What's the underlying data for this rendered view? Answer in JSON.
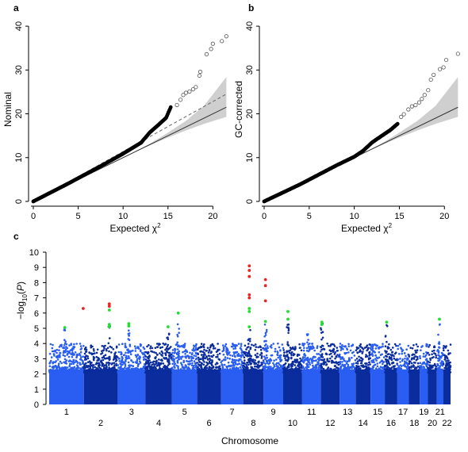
{
  "panels": {
    "a": {
      "letter": "a"
    },
    "b": {
      "letter": "b"
    },
    "c": {
      "letter": "c"
    }
  },
  "chart_data": [
    {
      "panel": "a",
      "type": "scatter",
      "xlabel": "Expected χ",
      "xlabel_sup": "2",
      "ylabel": "Nominal",
      "xlim": [
        0,
        22
      ],
      "ylim": [
        0,
        42
      ],
      "xticks": [
        0,
        5,
        10,
        15,
        20
      ],
      "yticks": [
        0,
        10,
        20,
        30,
        40
      ],
      "reference_line": {
        "from": [
          0,
          0
        ],
        "to": [
          21.5,
          21.5
        ]
      },
      "fitted_line_dashed": {
        "from": [
          0,
          0
        ],
        "to": [
          21.5,
          24.5
        ]
      },
      "confidence_band": {
        "x": [
          11,
          13,
          15,
          17,
          19,
          21.5
        ],
        "lower": [
          11,
          12.8,
          14.6,
          16.2,
          17.7,
          19.3
        ],
        "upper": [
          11,
          13.2,
          15.7,
          18.4,
          21.8,
          28.4
        ]
      },
      "dense_points": {
        "x": [
          0,
          4,
          8,
          10,
          12,
          13,
          14,
          14.8,
          15.3
        ],
        "y": [
          0,
          4.2,
          8.6,
          10.9,
          13.4,
          15.8,
          17.6,
          19.1,
          21.5
        ]
      },
      "outliers": [
        [
          16.0,
          22.0
        ],
        [
          16.4,
          23.2
        ],
        [
          16.7,
          24.3
        ],
        [
          17.0,
          24.8
        ],
        [
          17.4,
          25.1
        ],
        [
          17.8,
          25.6
        ],
        [
          18.1,
          26.1
        ],
        [
          18.5,
          28.7
        ],
        [
          18.6,
          29.6
        ],
        [
          19.3,
          33.6
        ],
        [
          19.8,
          34.8
        ],
        [
          20.0,
          36.0
        ],
        [
          21.0,
          36.6
        ],
        [
          21.5,
          37.7
        ]
      ]
    },
    {
      "panel": "b",
      "type": "scatter",
      "xlabel": "Expected χ",
      "xlabel_sup": "2",
      "ylabel": "GC-corrected",
      "xlim": [
        0,
        22
      ],
      "ylim": [
        0,
        42
      ],
      "xticks": [
        0,
        5,
        10,
        15,
        20
      ],
      "yticks": [
        0,
        10,
        20,
        30,
        40
      ],
      "reference_line": {
        "from": [
          0,
          0
        ],
        "to": [
          21.5,
          21.5
        ]
      },
      "confidence_band": {
        "x": [
          11,
          13,
          15,
          17,
          19,
          21.5
        ],
        "lower": [
          11,
          12.8,
          14.6,
          16.2,
          17.7,
          19.3
        ],
        "upper": [
          11,
          13.2,
          15.7,
          18.4,
          21.8,
          28.4
        ]
      },
      "dense_points": {
        "x": [
          0,
          4,
          8,
          10,
          11,
          12,
          13,
          14,
          14.8
        ],
        "y": [
          0,
          3.9,
          8.2,
          10.2,
          11.6,
          13.5,
          14.9,
          16.3,
          17.7
        ]
      },
      "outliers": [
        [
          15.2,
          19.3
        ],
        [
          15.5,
          19.9
        ],
        [
          16.0,
          21.0
        ],
        [
          16.4,
          21.7
        ],
        [
          16.8,
          22.0
        ],
        [
          17.2,
          22.6
        ],
        [
          17.5,
          23.4
        ],
        [
          17.8,
          24.3
        ],
        [
          18.2,
          25.4
        ],
        [
          18.5,
          27.8
        ],
        [
          18.8,
          28.9
        ],
        [
          19.5,
          30.2
        ],
        [
          19.9,
          30.6
        ],
        [
          20.2,
          32.3
        ],
        [
          21.5,
          33.7
        ]
      ]
    },
    {
      "panel": "c",
      "type": "scatter",
      "subtype": "manhattan",
      "xlabel": "Chromosome",
      "ylabel": "−log",
      "ylabel_sub": "10",
      "ylabel_suffix": "(",
      "ylabel_italic": "P",
      "ylabel_end": ")",
      "ylim": [
        0,
        10
      ],
      "yticks": [
        0,
        1,
        2,
        3,
        4,
        5,
        6,
        7,
        8,
        9,
        10
      ],
      "chromosomes": [
        "1",
        "2",
        "3",
        "4",
        "5",
        "6",
        "7",
        "8",
        "9",
        "10",
        "11",
        "12",
        "13",
        "14",
        "15",
        "16",
        "17",
        "18",
        "19",
        "20",
        "21",
        "22"
      ],
      "chromosome_sizes": [
        249,
        243,
        198,
        191,
        181,
        171,
        159,
        146,
        141,
        136,
        135,
        134,
        115,
        107,
        102,
        90,
        83,
        78,
        59,
        63,
        48,
        51
      ],
      "colors": {
        "odd": "#2a5ef2",
        "even": "#0a2c9c",
        "suggestive": "#22dd33",
        "significant": "#ee2222"
      },
      "peaks": [
        {
          "chr": 1,
          "pos": 0.45,
          "max": 5.0
        },
        {
          "chr": 2,
          "pos": 0.75,
          "max": 6.6
        },
        {
          "chr": 3,
          "pos": 0.4,
          "max": 5.3
        },
        {
          "chr": 4,
          "pos": 0.85,
          "max": 5.1
        },
        {
          "chr": 5,
          "pos": 0.25,
          "max": 6.0
        },
        {
          "chr": 7,
          "pos": 0.6,
          "max": 4.0
        },
        {
          "chr": 8,
          "pos": 0.3,
          "max": 9.1
        },
        {
          "chr": 9,
          "pos": 0.1,
          "max": 8.2
        },
        {
          "chr": 10,
          "pos": 0.25,
          "max": 6.1
        },
        {
          "chr": 11,
          "pos": 0.3,
          "max": 4.8
        },
        {
          "chr": 12,
          "pos": 0.05,
          "max": 5.4
        },
        {
          "chr": 16,
          "pos": 0.15,
          "max": 5.4
        },
        {
          "chr": 21,
          "pos": 0.4,
          "max": 5.6
        }
      ],
      "highlighted_points": [
        {
          "chr": 1,
          "pos": 0.45,
          "y": 5.05,
          "color": "suggestive"
        },
        {
          "chr": 1,
          "pos": 0.98,
          "y": 6.3,
          "color": "significant"
        },
        {
          "chr": 2,
          "pos": 0.75,
          "y": 6.6,
          "color": "significant"
        },
        {
          "chr": 2,
          "pos": 0.75,
          "y": 6.45,
          "color": "significant"
        },
        {
          "chr": 2,
          "pos": 0.75,
          "y": 6.2,
          "color": "suggestive"
        },
        {
          "chr": 2,
          "pos": 0.75,
          "y": 5.25,
          "color": "suggestive"
        },
        {
          "chr": 2,
          "pos": 0.75,
          "y": 5.1,
          "color": "suggestive"
        },
        {
          "chr": 3,
          "pos": 0.4,
          "y": 5.3,
          "color": "suggestive"
        },
        {
          "chr": 3,
          "pos": 0.4,
          "y": 5.15,
          "color": "suggestive"
        },
        {
          "chr": 4,
          "pos": 0.85,
          "y": 5.1,
          "color": "suggestive"
        },
        {
          "chr": 5,
          "pos": 0.25,
          "y": 6.0,
          "color": "suggestive"
        },
        {
          "chr": 8,
          "pos": 0.3,
          "y": 9.1,
          "color": "significant"
        },
        {
          "chr": 8,
          "pos": 0.3,
          "y": 8.8,
          "color": "significant"
        },
        {
          "chr": 8,
          "pos": 0.3,
          "y": 8.4,
          "color": "significant"
        },
        {
          "chr": 8,
          "pos": 0.3,
          "y": 7.2,
          "color": "significant"
        },
        {
          "chr": 8,
          "pos": 0.3,
          "y": 7.0,
          "color": "significant"
        },
        {
          "chr": 8,
          "pos": 0.3,
          "y": 6.3,
          "color": "suggestive"
        },
        {
          "chr": 8,
          "pos": 0.3,
          "y": 6.1,
          "color": "suggestive"
        },
        {
          "chr": 8,
          "pos": 0.3,
          "y": 5.1,
          "color": "suggestive"
        },
        {
          "chr": 9,
          "pos": 0.1,
          "y": 8.2,
          "color": "significant"
        },
        {
          "chr": 9,
          "pos": 0.1,
          "y": 7.8,
          "color": "significant"
        },
        {
          "chr": 9,
          "pos": 0.1,
          "y": 6.8,
          "color": "significant"
        },
        {
          "chr": 9,
          "pos": 0.1,
          "y": 5.45,
          "color": "suggestive"
        },
        {
          "chr": 10,
          "pos": 0.25,
          "y": 6.1,
          "color": "suggestive"
        },
        {
          "chr": 10,
          "pos": 0.25,
          "y": 5.6,
          "color": "suggestive"
        },
        {
          "chr": 12,
          "pos": 0.05,
          "y": 5.4,
          "color": "suggestive"
        },
        {
          "chr": 12,
          "pos": 0.05,
          "y": 5.25,
          "color": "suggestive"
        },
        {
          "chr": 16,
          "pos": 0.15,
          "y": 5.4,
          "color": "suggestive"
        },
        {
          "chr": 21,
          "pos": 0.4,
          "y": 5.6,
          "color": "suggestive"
        }
      ]
    }
  ]
}
